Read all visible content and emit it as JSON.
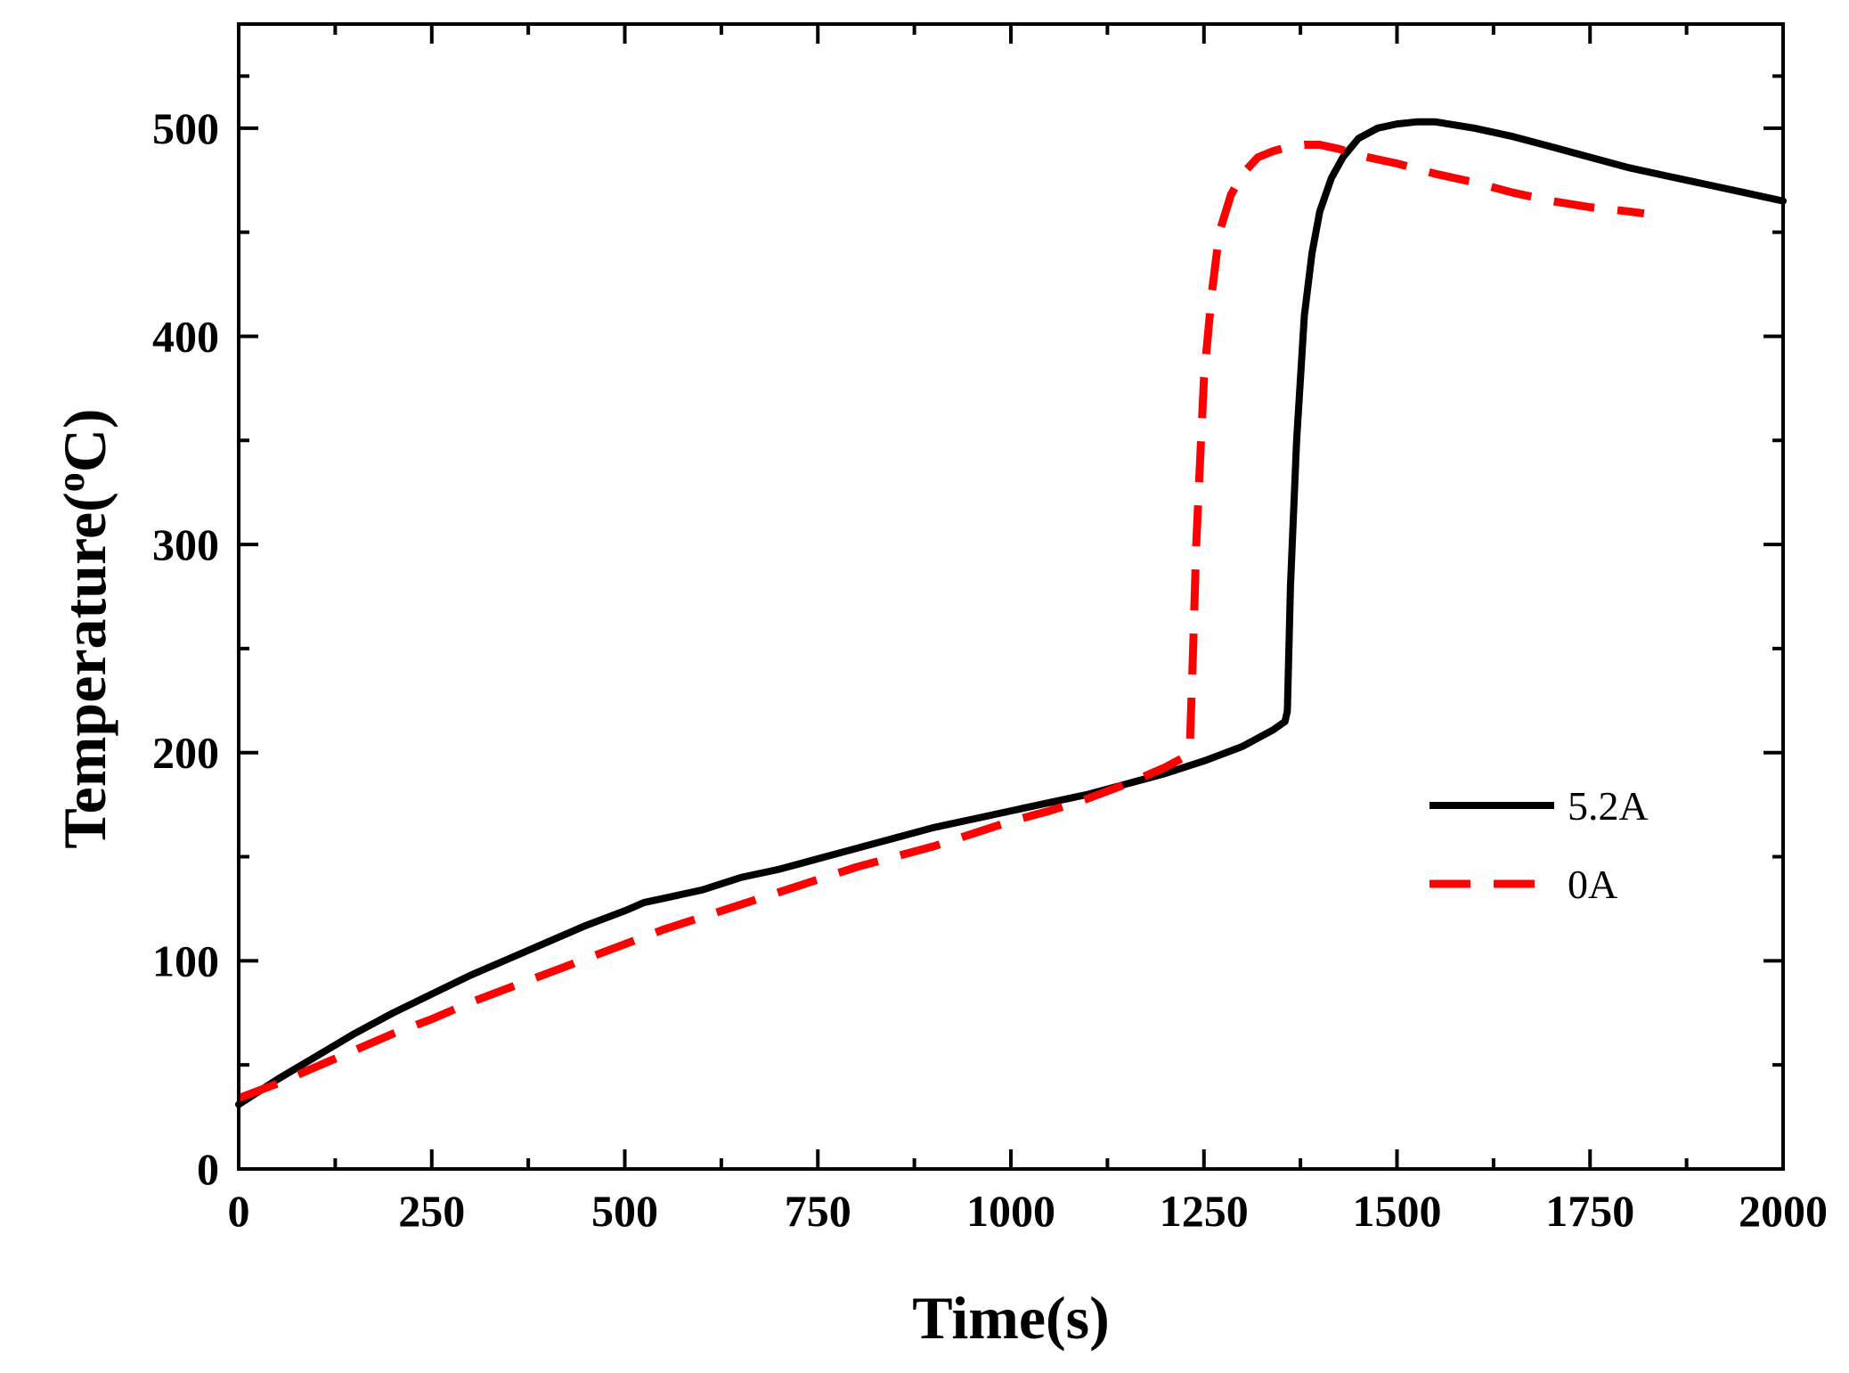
{
  "chart_data": {
    "type": "line",
    "title": "",
    "xlabel": "Time(s)",
    "ylabel_main": "Temperature(",
    "ylabel_sup": "o",
    "ylabel_end": "C)",
    "xlim": [
      0,
      2000
    ],
    "ylim": [
      0,
      550
    ],
    "xticks": [
      0,
      250,
      500,
      750,
      1000,
      1250,
      1500,
      1750,
      2000
    ],
    "xtick_labels": [
      "0",
      "250",
      "500",
      "750",
      "1000",
      "1250",
      "1500",
      "1750",
      "2000"
    ],
    "yticks": [
      0,
      100,
      200,
      300,
      400,
      500
    ],
    "ytick_labels": [
      "0",
      "100",
      "200",
      "300",
      "400",
      "500"
    ],
    "grid": false,
    "legend_position": "right",
    "series": [
      {
        "name": "5.2A",
        "color": "#000000",
        "style": "solid",
        "x": [
          0,
          50,
          100,
          150,
          200,
          250,
          300,
          350,
          400,
          450,
          500,
          525,
          550,
          600,
          650,
          700,
          750,
          800,
          850,
          900,
          950,
          1000,
          1050,
          1100,
          1150,
          1200,
          1250,
          1300,
          1340,
          1355,
          1358,
          1362,
          1370,
          1380,
          1390,
          1400,
          1415,
          1430,
          1450,
          1475,
          1500,
          1525,
          1550,
          1600,
          1650,
          1700,
          1750,
          1800,
          1850,
          1900,
          1950,
          2000
        ],
        "values": [
          31,
          43,
          54,
          65,
          75,
          84,
          93,
          101,
          109,
          117,
          124,
          128,
          130,
          134,
          140,
          144,
          149,
          154,
          159,
          164,
          168,
          172,
          176,
          180,
          185,
          190,
          196,
          203,
          211,
          215,
          220,
          280,
          350,
          410,
          440,
          460,
          476,
          486,
          495,
          500,
          502,
          503,
          503,
          500,
          496,
          491,
          486,
          481,
          477,
          473,
          469,
          465
        ]
      },
      {
        "name": "0A",
        "color": "#ff0000",
        "style": "dashed",
        "x": [
          0,
          50,
          100,
          150,
          200,
          250,
          300,
          350,
          400,
          450,
          500,
          550,
          600,
          650,
          700,
          750,
          800,
          850,
          900,
          950,
          1000,
          1050,
          1100,
          1150,
          1200,
          1225,
          1232,
          1236,
          1240,
          1245,
          1250,
          1260,
          1270,
          1285,
          1300,
          1320,
          1340,
          1360,
          1380,
          1400,
          1425,
          1450,
          1500,
          1550,
          1600,
          1650,
          1700,
          1750,
          1800,
          1820
        ],
        "values": [
          34,
          41,
          49,
          57,
          65,
          72,
          80,
          87,
          94,
          101,
          108,
          115,
          121,
          127,
          133,
          139,
          145,
          150,
          155,
          161,
          167,
          172,
          178,
          185,
          193,
          198,
          205,
          250,
          300,
          340,
          380,
          420,
          450,
          468,
          478,
          486,
          489,
          491,
          492,
          492,
          490,
          487,
          483,
          478,
          474,
          469,
          465,
          462,
          460,
          459
        ]
      }
    ]
  }
}
